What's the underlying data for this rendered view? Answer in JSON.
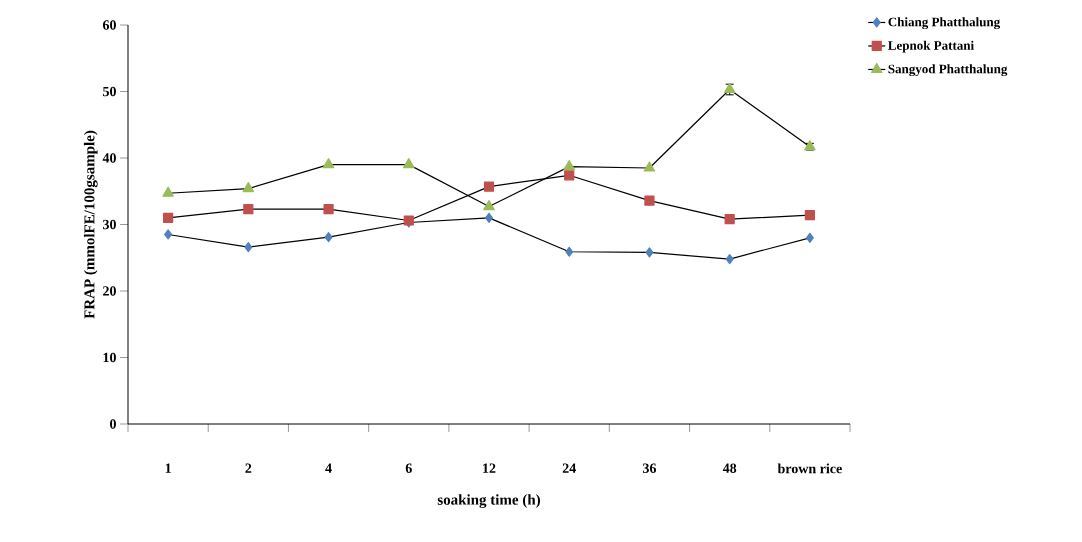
{
  "chart_data": {
    "type": "line",
    "xlabel": "soaking time (h)",
    "ylabel": "FRAP (mmolFE/100gsample)",
    "categories": [
      "1",
      "2",
      "4",
      "6",
      "12",
      "24",
      "36",
      "48",
      "brown rice"
    ],
    "ylim": [
      0,
      60
    ],
    "yticks": [
      0,
      10,
      20,
      30,
      40,
      50,
      60
    ],
    "legend": "top right",
    "series": [
      {
        "name": "Chiang Phatthalung",
        "color": "#4f81bd",
        "marker": "diamond",
        "values": [
          28.5,
          26.6,
          28.1,
          30.3,
          31.0,
          25.9,
          25.8,
          24.8,
          28.0
        ]
      },
      {
        "name": "Lepnok Pattani",
        "color": "#c0504d",
        "marker": "square",
        "values": [
          31.0,
          32.3,
          32.3,
          30.6,
          35.7,
          37.4,
          33.6,
          30.8,
          31.4
        ]
      },
      {
        "name": "Sangyod Phatthalung",
        "color": "#9bbb59",
        "marker": "triangle",
        "values": [
          34.7,
          35.4,
          39.0,
          39.0,
          32.7,
          38.7,
          38.5,
          50.3,
          41.7
        ],
        "errors": [
          null,
          null,
          null,
          null,
          null,
          null,
          null,
          0.8,
          0.5
        ]
      }
    ]
  }
}
